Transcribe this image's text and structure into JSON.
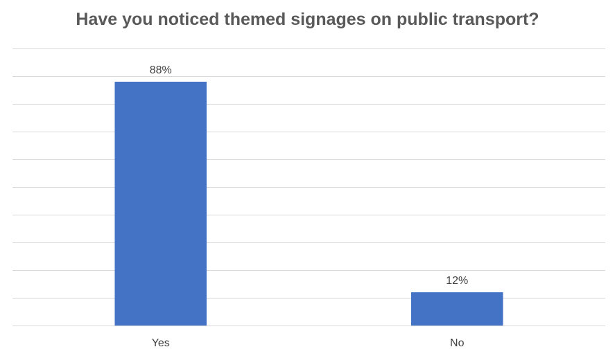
{
  "chart_data": {
    "type": "bar",
    "title": "Have you noticed themed signages on public transport?",
    "categories": [
      "Yes",
      "No"
    ],
    "values": [
      88,
      12
    ],
    "data_labels": [
      "88%",
      "12%"
    ],
    "value_unit": "%",
    "ylim": [
      0,
      100
    ],
    "gridline_step": 10,
    "y_tick_labels_shown": false,
    "grid": true,
    "legend": "none",
    "xlabel": "",
    "ylabel": "",
    "colors": {
      "bar": "#4472c4",
      "gridline": "#d9d9d9",
      "title": "#595959",
      "text": "#404040"
    }
  }
}
